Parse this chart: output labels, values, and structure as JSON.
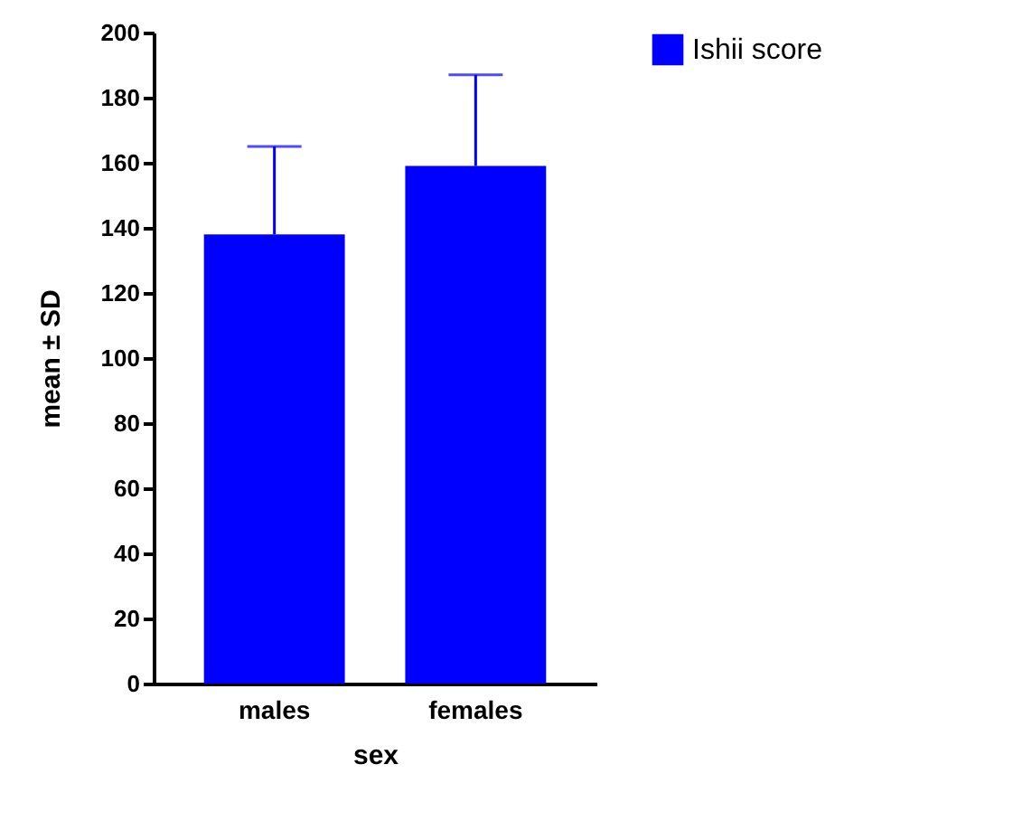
{
  "chart_data": {
    "type": "bar",
    "xlabel": "sex",
    "ylabel": "mean ± SD",
    "categories": [
      "males",
      "females"
    ],
    "series": [
      {
        "name": "Ishii score",
        "color": "#0000ff",
        "values": [
          138,
          159
        ],
        "errors": [
          [
            138,
            165
          ],
          [
            159,
            187
          ]
        ]
      }
    ],
    "ylim": [
      0,
      200
    ],
    "yticks": [
      0,
      20,
      40,
      60,
      80,
      100,
      120,
      140,
      160,
      180,
      200
    ],
    "grid": false,
    "legend": "top right"
  }
}
